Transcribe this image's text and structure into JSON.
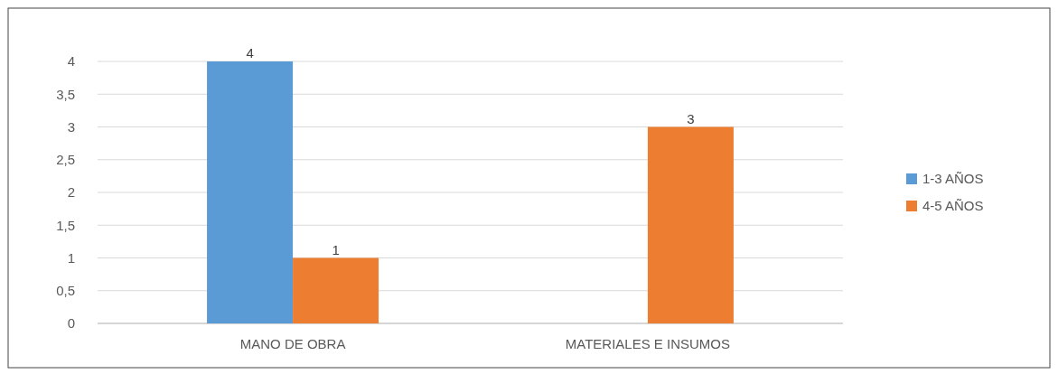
{
  "chart_data": {
    "type": "bar",
    "categories": [
      "MANO DE OBRA",
      "MATERIALES E INSUMOS"
    ],
    "series": [
      {
        "name": "1-3 AÑOS",
        "color": "#5b9bd5",
        "values": [
          4,
          null
        ]
      },
      {
        "name": "4-5 AÑOS",
        "color": "#ed7d31",
        "values": [
          1,
          3
        ]
      }
    ],
    "ylim": [
      0,
      4
    ],
    "yticks": [
      0,
      {
        "value": 0.5,
        "label": "0,5"
      },
      1,
      {
        "value": 1.5,
        "label": "1,5"
      },
      2,
      {
        "value": 2.5,
        "label": "2,5"
      },
      3,
      {
        "value": 3.5,
        "label": "3,5"
      },
      4
    ],
    "grid": "y",
    "legend": "right",
    "data_labels": true
  }
}
